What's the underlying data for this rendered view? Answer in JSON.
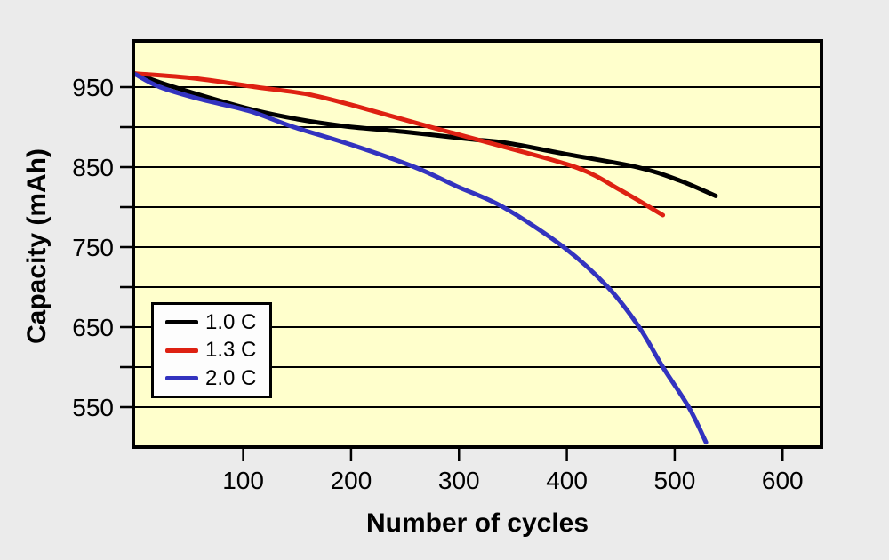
{
  "chart_data": {
    "type": "line",
    "title": "",
    "xlabel": "Number of cycles",
    "ylabel": "Capacity (mAh)",
    "x_ticks": [
      100,
      200,
      300,
      400,
      500,
      600
    ],
    "y_tick_labels": [
      950,
      850,
      750,
      650,
      550
    ],
    "y_gridlines": [
      950,
      900,
      850,
      800,
      750,
      700,
      650,
      600,
      550
    ],
    "xlim": [
      0,
      636
    ],
    "ylim": [
      498,
      1007
    ],
    "grid": "horizontal-only",
    "legend_position": "lower-left-inside",
    "colors": {
      "plot_background": "#ffffcc",
      "outer_background": "#ebebeb",
      "axis_and_grid": "#000000",
      "legend_background": "#fdfdfd"
    },
    "series": [
      {
        "name": "1.0 C",
        "color": "#000000",
        "points": [
          [
            0,
            967
          ],
          [
            36,
            950
          ],
          [
            105,
            923
          ],
          [
            150,
            910
          ],
          [
            195,
            901
          ],
          [
            250,
            894
          ],
          [
            310,
            885
          ],
          [
            345,
            880
          ],
          [
            400,
            866
          ],
          [
            465,
            850
          ],
          [
            505,
            833
          ],
          [
            538,
            814
          ]
        ]
      },
      {
        "name": "1.3 C",
        "color": "#de2112",
        "points": [
          [
            0,
            967
          ],
          [
            55,
            961
          ],
          [
            112,
            950
          ],
          [
            160,
            941
          ],
          [
            205,
            926
          ],
          [
            274,
            900
          ],
          [
            340,
            876
          ],
          [
            410,
            849
          ],
          [
            450,
            821
          ],
          [
            489,
            790
          ]
        ]
      },
      {
        "name": "2.0 C",
        "color": "#3333bf",
        "points": [
          [
            0,
            966
          ],
          [
            23,
            950
          ],
          [
            60,
            935
          ],
          [
            106,
            920
          ],
          [
            147,
            900
          ],
          [
            200,
            878
          ],
          [
            259,
            850
          ],
          [
            298,
            826
          ],
          [
            341,
            800
          ],
          [
            397,
            750
          ],
          [
            438,
            700
          ],
          [
            467,
            650
          ],
          [
            489,
            600
          ],
          [
            513,
            550
          ],
          [
            529,
            506
          ]
        ]
      }
    ]
  }
}
